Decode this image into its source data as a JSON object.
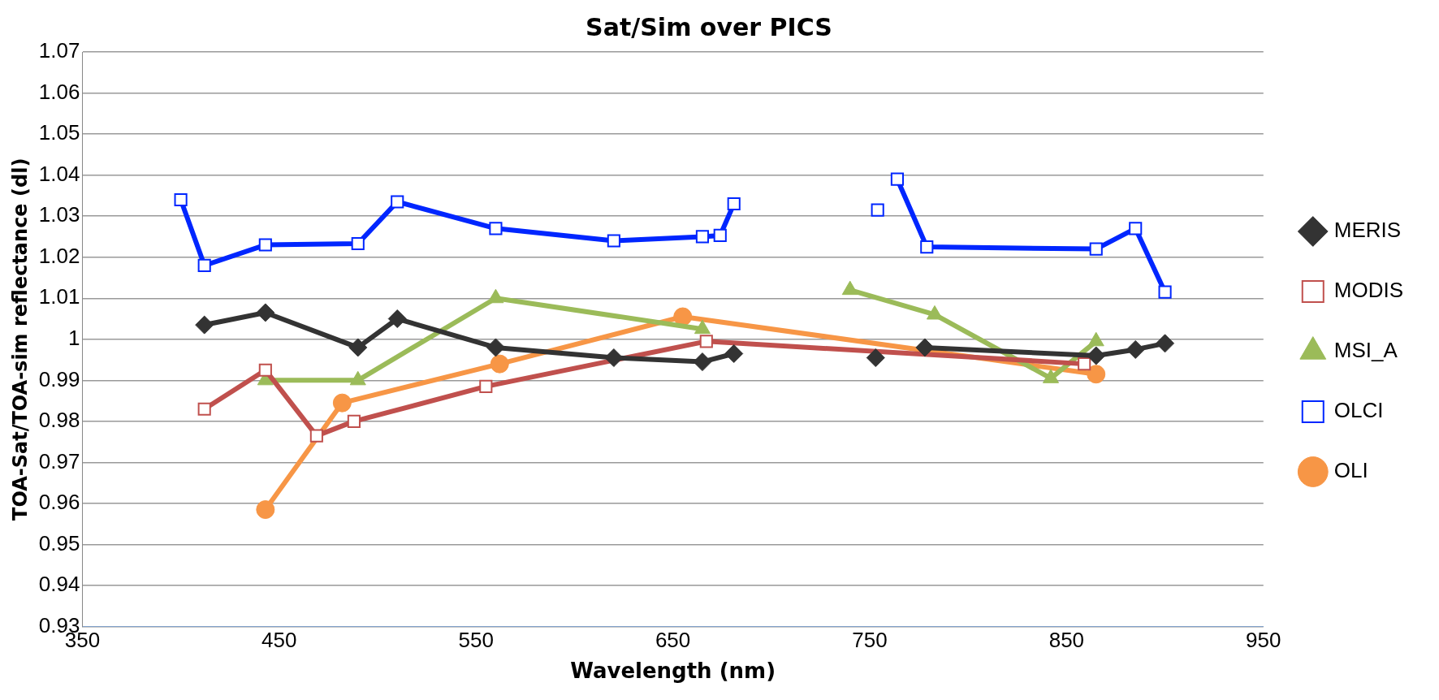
{
  "chart_data": {
    "type": "line",
    "title": "Sat/Sim over PICS",
    "xlabel": "Wavelength (nm)",
    "ylabel": "TOA-Sat/TOA-sim reflectance (dl)",
    "xlim": [
      350,
      950
    ],
    "xticks": [
      350,
      450,
      550,
      650,
      750,
      850,
      950
    ],
    "ylim": [
      0.93,
      1.07
    ],
    "yticks": [
      0.93,
      0.94,
      0.95,
      0.96,
      0.97,
      0.98,
      0.99,
      1,
      1.01,
      1.02,
      1.03,
      1.04,
      1.05,
      1.06,
      1.07
    ],
    "grid": "y",
    "legend": "right",
    "series": [
      {
        "name": "MERIS",
        "color": "#333333",
        "marker": "diamond",
        "x": [
          412,
          443,
          490,
          510,
          560,
          620,
          665,
          681
        ],
        "values": [
          1.0035,
          1.0065,
          0.998,
          1.005,
          0.998,
          0.9955,
          0.9945,
          0.9965
        ]
      },
      {
        "color": "#333333",
        "marker": "diamond",
        "type": "scatter",
        "x": [
          753
        ],
        "values": [
          0.9955
        ]
      },
      {
        "color": "#333333",
        "marker": "diamond",
        "x": [
          778,
          865,
          885,
          900
        ],
        "values": [
          0.998,
          0.996,
          0.9975,
          0.999
        ]
      },
      {
        "name": "MODIS",
        "color": "#c0504d",
        "marker": "square",
        "x": [
          412,
          443,
          469,
          488,
          555,
          667,
          859
        ],
        "values": [
          0.983,
          0.9925,
          0.9765,
          0.98,
          0.9885,
          0.9995,
          0.994
        ]
      },
      {
        "name": "MSI_A",
        "color": "#9bbb59",
        "marker": "triangle",
        "x": [
          443,
          490,
          560,
          665
        ],
        "values": [
          0.99,
          0.99,
          1.01,
          1.0025
        ]
      },
      {
        "color": "#9bbb59",
        "marker": "triangle",
        "x": [
          740,
          783,
          842,
          865
        ],
        "values": [
          1.012,
          1.006,
          0.9905,
          0.9995
        ]
      },
      {
        "name": "OLCI",
        "color": "#0026ff",
        "marker": "square",
        "x": [
          400,
          412,
          443,
          490,
          510,
          560,
          620,
          665,
          674,
          681
        ],
        "values": [
          1.034,
          1.018,
          1.023,
          1.0233,
          1.0335,
          1.027,
          1.024,
          1.025,
          1.0253,
          1.033
        ]
      },
      {
        "color": "#0026ff",
        "marker": "square",
        "type": "scatter",
        "x": [
          754
        ],
        "values": [
          1.0315
        ]
      },
      {
        "color": "#0026ff",
        "marker": "square",
        "x": [
          764,
          779,
          865,
          885,
          900
        ],
        "values": [
          1.039,
          1.0225,
          1.022,
          1.027,
          1.0115
        ]
      },
      {
        "name": "OLI",
        "color": "#f79646",
        "marker": "circle",
        "x": [
          443,
          482,
          562,
          655,
          865
        ],
        "values": [
          0.9585,
          0.9845,
          0.994,
          1.0055,
          0.9915
        ]
      }
    ]
  }
}
